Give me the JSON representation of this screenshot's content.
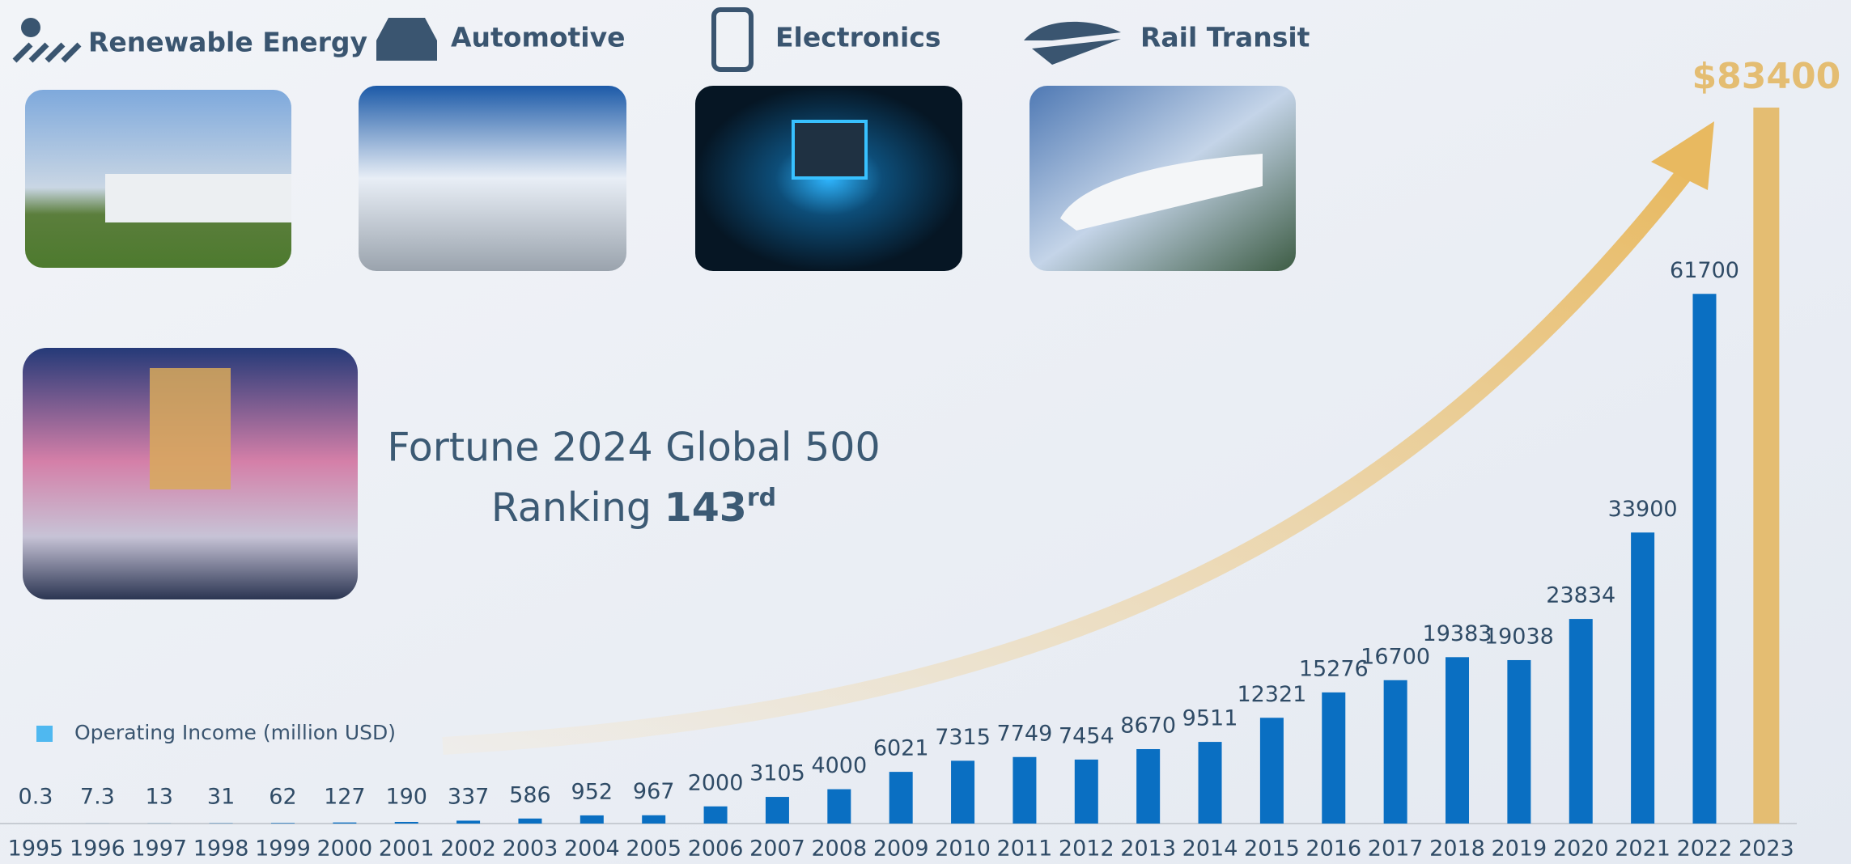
{
  "sectors": [
    "Renewable Energy",
    "Automotive",
    "Electronics",
    "Rail Transit"
  ],
  "headline": {
    "title": "Fortune 2024 Global 500",
    "ranking_label": "Ranking",
    "ranking": "143",
    "ranking_suffix": "rd"
  },
  "chart_data": {
    "type": "bar",
    "categories": [
      "1995",
      "1996",
      "1997",
      "1998",
      "1999",
      "2000",
      "2001",
      "2002",
      "2003",
      "2004",
      "2005",
      "2006",
      "2007",
      "2008",
      "2009",
      "2010",
      "2011",
      "2012",
      "2013",
      "2014",
      "2015",
      "2016",
      "2017",
      "2018",
      "2019",
      "2020",
      "2021",
      "2022",
      "2023"
    ],
    "series": [
      {
        "name": "Operating Income (million USD)",
        "color": "#0a6fc2",
        "values": [
          0.3,
          7.3,
          13,
          31,
          62,
          127,
          190,
          337,
          586,
          952,
          967,
          2000,
          3105,
          4000,
          6021,
          7315,
          7749,
          7454,
          8670,
          9511,
          12321,
          15276,
          16700,
          19383,
          19038,
          23834,
          33900,
          61700,
          83400
        ],
        "value_labels": [
          "0.3",
          "7.3",
          "13",
          "31",
          "62",
          "127",
          "190",
          "337",
          "586",
          "952",
          "967",
          "2000",
          "3105",
          "4000",
          "6021",
          "7315",
          "7749",
          "7454",
          "8670",
          "9511",
          "12321",
          "15276",
          "16700",
          "19383",
          "19038",
          "23834",
          "33900",
          "61700",
          "$83400"
        ],
        "colors": [
          "#0a6fc2",
          "#0a6fc2",
          "#0a6fc2",
          "#0a6fc2",
          "#0a6fc2",
          "#0a6fc2",
          "#0a6fc2",
          "#0a6fc2",
          "#0a6fc2",
          "#0a6fc2",
          "#0a6fc2",
          "#0a6fc2",
          "#0a6fc2",
          "#0a6fc2",
          "#0a6fc2",
          "#0a6fc2",
          "#0a6fc2",
          "#0a6fc2",
          "#0a6fc2",
          "#0a6fc2",
          "#0a6fc2",
          "#0a6fc2",
          "#0a6fc2",
          "#0a6fc2",
          "#0a6fc2",
          "#0a6fc2",
          "#0a6fc2",
          "#0a6fc2",
          "#e4bd72"
        ]
      }
    ],
    "legend_color": "#4fb8f0",
    "ylim": [
      0,
      85000
    ],
    "grid": false
  }
}
